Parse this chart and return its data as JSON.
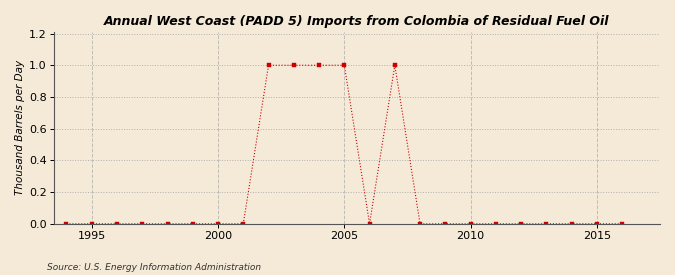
{
  "title": "Annual West Coast (PADD 5) Imports from Colombia of Residual Fuel Oil",
  "ylabel": "Thousand Barrels per Day",
  "source": "Source: U.S. Energy Information Administration",
  "background_color": "#f5ead8",
  "line_color": "#cc0000",
  "marker_color": "#cc0000",
  "grid_h_color": "#aaaaaa",
  "grid_v_color": "#aaaaaa",
  "xlim": [
    1993.5,
    2017.5
  ],
  "ylim": [
    0.0,
    1.21
  ],
  "yticks": [
    0.0,
    0.2,
    0.4,
    0.6,
    0.8,
    1.0,
    1.2
  ],
  "xticks": [
    1995,
    2000,
    2005,
    2010,
    2015
  ],
  "years": [
    1994,
    1995,
    1996,
    1997,
    1998,
    1999,
    2000,
    2001,
    2002,
    2003,
    2004,
    2005,
    2006,
    2007,
    2008,
    2009,
    2010,
    2011,
    2012,
    2013,
    2014,
    2015,
    2016
  ],
  "values": [
    0,
    0,
    0,
    0,
    0,
    0,
    0,
    0,
    1,
    1,
    1,
    1,
    0,
    1,
    0,
    0,
    0,
    0,
    0,
    0,
    0,
    0,
    0
  ]
}
